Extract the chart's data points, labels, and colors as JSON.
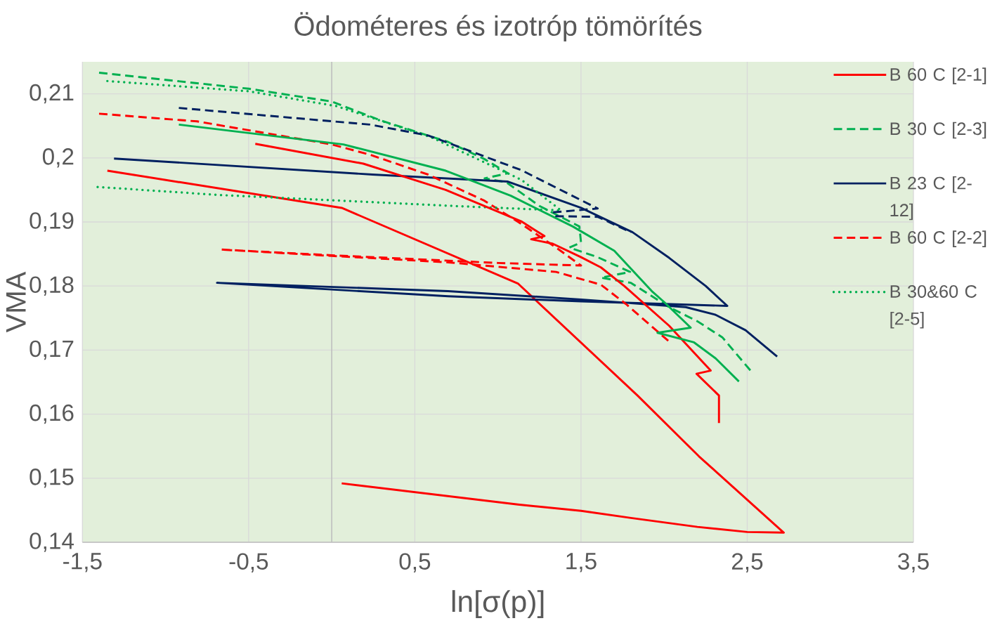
{
  "chart_data": {
    "type": "line",
    "title": "Ödométeres és izotróp tömörítés",
    "xlabel": "ln[σ(p)]",
    "ylabel": "VMA",
    "xlim": [
      -1.5,
      3.5
    ],
    "ylim": [
      0.14,
      0.215
    ],
    "xticks": [
      {
        "value": -1.5,
        "label": "-1,5"
      },
      {
        "value": -0.5,
        "label": "-0,5"
      },
      {
        "value": 0.5,
        "label": "0,5"
      },
      {
        "value": 1.5,
        "label": "1,5"
      },
      {
        "value": 2.5,
        "label": "2,5"
      },
      {
        "value": 3.5,
        "label": "3,5"
      }
    ],
    "yticks": [
      {
        "value": 0.14,
        "label": "0,14"
      },
      {
        "value": 0.15,
        "label": "0,15"
      },
      {
        "value": 0.16,
        "label": "0,16"
      },
      {
        "value": 0.17,
        "label": "0,17"
      },
      {
        "value": 0.18,
        "label": "0,18"
      },
      {
        "value": 0.19,
        "label": "0,19"
      },
      {
        "value": 0.2,
        "label": "0,2"
      },
      {
        "value": 0.21,
        "label": "0,21"
      }
    ],
    "grid": true,
    "legend": "top right",
    "series": [
      {
        "name": "B 60 C [2-1]",
        "color": "#ff0000",
        "line_style": "solid",
        "x": [
          -1.35,
          0.06,
          1.12,
          1.84,
          2.21,
          2.72,
          2.5,
          2.2,
          1.8,
          1.5,
          1.12,
          0.06
        ],
        "values": [
          0.198,
          0.1922,
          0.1804,
          0.1629,
          0.1534,
          0.1415,
          0.1416,
          0.1424,
          0.1438,
          0.1449,
          0.1459,
          0.1492
        ]
      },
      {
        "name": "B 30 C [2-3]",
        "color": "#00b050",
        "line_style": "dashed",
        "x": [
          -1.4,
          -0.5,
          0.0,
          0.3,
          0.7,
          0.92,
          1.06,
          0.92,
          1.05,
          1.25,
          1.49,
          1.5,
          1.43,
          1.6,
          1.795,
          1.62,
          1.8,
          2.03,
          2.2,
          2.35,
          2.52
        ],
        "values": [
          0.2133,
          0.2108,
          0.2088,
          0.2058,
          0.2025,
          0.1998,
          0.1976,
          0.1968,
          0.1962,
          0.1925,
          0.1893,
          0.1868,
          0.186,
          0.1845,
          0.1822,
          0.1813,
          0.1805,
          0.1767,
          0.1745,
          0.172,
          0.1668
        ]
      },
      {
        "name": "B 23 C [2-12]",
        "color": "#002060",
        "line_style": "solid",
        "x": [
          -1.31,
          0.245,
          1.06,
          1.5,
          1.81,
          2.03,
          2.25,
          2.38,
          1.5,
          0.7,
          -0.69,
          0.7,
          1.5,
          2.13,
          2.31,
          2.49,
          2.68
        ],
        "values": [
          0.1999,
          0.1974,
          0.1963,
          0.1922,
          0.1884,
          0.1844,
          0.18,
          0.1769,
          0.1776,
          0.1784,
          0.1805,
          0.1792,
          0.1779,
          0.1767,
          0.1755,
          0.1731,
          0.169
        ]
      },
      {
        "name": "B 60 C [2-2]",
        "color": "#ff0000",
        "line_style": "dashed",
        "x": [
          -1.4,
          -0.81,
          0.0,
          0.23,
          0.58,
          0.92,
          1.14,
          1.35,
          1.5,
          1.0,
          0.0,
          -0.67,
          0.0,
          0.7,
          1.35,
          1.62,
          1.77,
          2.04
        ],
        "values": [
          0.2069,
          0.2057,
          0.2021,
          0.2005,
          0.1974,
          0.1933,
          0.1897,
          0.186,
          0.1832,
          0.1836,
          0.1848,
          0.1857,
          0.1847,
          0.1837,
          0.1822,
          0.1802,
          0.1772,
          0.1711
        ]
      },
      {
        "name": "B 30&60 C [2-5]",
        "color": "#00b050",
        "line_style": "dotted",
        "x": [
          -1.35,
          -0.5,
          0.025,
          0.6,
          1.14,
          1.38,
          0.73,
          0.16,
          -0.67,
          -1.43
        ],
        "values": [
          0.212,
          0.2104,
          0.2081,
          0.2032,
          0.1966,
          0.1918,
          0.1925,
          0.1932,
          0.1942,
          0.1955
        ]
      },
      {
        "color": "#ff0000",
        "line_style": "solid",
        "x": [
          -0.46,
          0.19,
          0.686,
          1.14,
          1.28,
          1.2,
          1.33,
          1.5,
          1.62,
          1.76,
          2.03,
          2.28,
          2.195,
          2.33,
          2.33
        ],
        "values": [
          0.2022,
          0.1991,
          0.195,
          0.1901,
          0.1878,
          0.1873,
          0.1866,
          0.1845,
          0.1829,
          0.18,
          0.1738,
          0.1668,
          0.1663,
          0.1629,
          0.1586
        ]
      },
      {
        "color": "#00b050",
        "line_style": "solid",
        "x": [
          -0.92,
          0.07,
          0.686,
          1.077,
          1.45,
          1.7,
          1.93,
          2.0,
          2.16,
          1.96,
          2.18,
          2.31,
          2.45
        ],
        "values": [
          0.2052,
          0.2021,
          0.198,
          0.1941,
          0.1893,
          0.1855,
          0.1791,
          0.1775,
          0.1735,
          0.1727,
          0.1712,
          0.1687,
          0.1651
        ]
      },
      {
        "color": "#002060",
        "line_style": "dashed",
        "x": [
          -0.92,
          0.23,
          0.58,
          1.14,
          1.6,
          1.33,
          1.35,
          1.6,
          1.8
        ],
        "values": [
          0.2078,
          0.2052,
          0.2035,
          0.1981,
          0.1921,
          0.1915,
          0.1909,
          0.1908,
          0.1884
        ]
      }
    ]
  }
}
